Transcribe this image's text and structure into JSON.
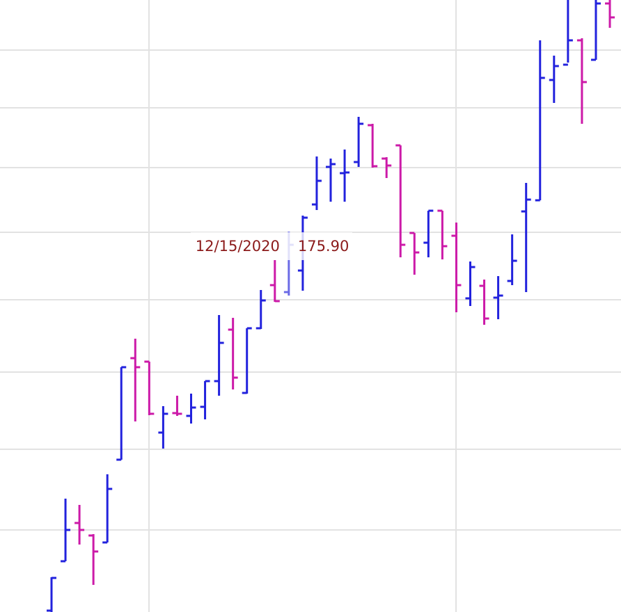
{
  "chart_data": {
    "type": "ohlc",
    "ylim": [
      149.5,
      193.5
    ],
    "up_color": "#2222dd",
    "down_color": "#cc1aa8",
    "highlight_color": "#6b6be6",
    "highlight_index": 17,
    "categories": [
      null,
      null,
      null,
      null,
      null,
      null,
      null,
      null,
      null,
      null,
      null,
      null,
      null,
      null,
      null,
      null,
      null,
      "12/15/2020",
      null,
      null,
      null,
      null,
      null,
      null,
      null,
      null,
      null,
      null,
      null,
      null,
      null,
      null,
      null,
      null,
      null,
      null,
      null,
      null,
      null,
      null,
      null
    ],
    "open": [
      149.6,
      153.15,
      155.9,
      155,
      154.5,
      160.45,
      167.75,
      167.5,
      162.4,
      163.8,
      163.6,
      164.25,
      166.1,
      169.8,
      165.25,
      169.9,
      173,
      172.5,
      174.05,
      178.8,
      181.5,
      181.05,
      181.85,
      184.5,
      182.1,
      183.05,
      176.75,
      176.05,
      178.35,
      176.55,
      172.05,
      172.95,
      172.1,
      173.3,
      178.3,
      179.1,
      187.75,
      188.85,
      190.6,
      189.2,
      193.25
    ],
    "high": [
      152,
      157.65,
      157.2,
      155.1,
      159.4,
      167.1,
      169.15,
      167.5,
      164.3,
      165.05,
      165.2,
      166.1,
      170.85,
      170.65,
      169.9,
      172.65,
      174.8,
      176.85,
      178,
      182.25,
      182.1,
      182.75,
      185.1,
      184.6,
      182.2,
      183.05,
      176.75,
      178.35,
      178.35,
      177.5,
      174.7,
      173.4,
      173.65,
      176.65,
      180.35,
      190.6,
      189.5,
      194,
      190.75,
      194.5,
      194.5
    ],
    "low": [
      149.5,
      153.15,
      154.35,
      151.45,
      154.5,
      160.45,
      163.2,
      163.65,
      161.25,
      163.6,
      163.05,
      163.35,
      165.05,
      165.5,
      165.2,
      169.85,
      171.8,
      172.25,
      172.6,
      178.4,
      179,
      179,
      181.5,
      181.45,
      180.7,
      175,
      173.75,
      175,
      174.85,
      171.05,
      171.5,
      170.15,
      170.55,
      173,
      172.5,
      179.1,
      186.1,
      189,
      184.6,
      189.2,
      191.5
    ],
    "close": {
      "values": [
        151.95,
        155.4,
        155.4,
        153.85,
        158.35,
        167.1,
        167.1,
        163.75,
        163.75,
        163.75,
        164.2,
        166.1,
        168.85,
        166.35,
        169.9,
        171.9,
        171.85,
        175.9,
        177.85,
        180.5,
        181.7,
        181.1,
        184.6,
        181.55,
        181.6,
        175.9,
        175.35,
        178.35,
        175.8,
        173,
        174.3,
        170.6,
        172.25,
        174.75,
        179.15,
        187.9,
        188.75,
        190.6,
        187.6,
        193.25,
        192.25
      ],
      "value_labels": [
        null,
        null,
        null,
        null,
        null,
        null,
        null,
        null,
        null,
        null,
        null,
        null,
        null,
        null,
        null,
        null,
        null,
        "175.90",
        null,
        null,
        null,
        null,
        null,
        null,
        null,
        null,
        null,
        null,
        null,
        null,
        null,
        null,
        null,
        null,
        null,
        null,
        null,
        null,
        null,
        null,
        null
      ]
    }
  }
}
